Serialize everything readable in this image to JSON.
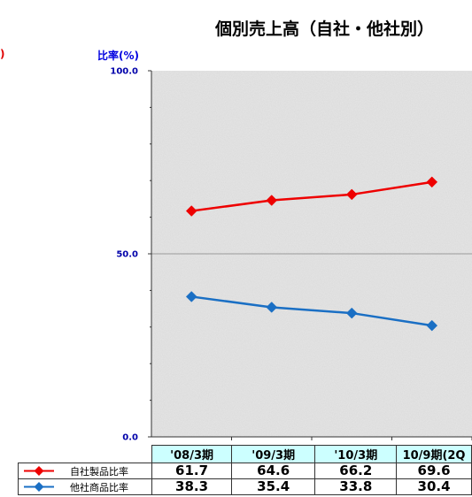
{
  "chart_data": {
    "type": "line",
    "title": "個別売上高（自社・他社別）",
    "ylabel": "比率(%)",
    "ylim": [
      0,
      100
    ],
    "yticks": [
      "0.0",
      "50.0",
      "100.0"
    ],
    "categories": [
      "'08/3期",
      "'09/3期",
      "'10/3期",
      "10/9期(2Q"
    ],
    "series": [
      {
        "name": "自社製品比率",
        "color": "#ee0000",
        "values": [
          61.7,
          64.6,
          66.2,
          69.6
        ],
        "labels": [
          "61.7",
          "64.6",
          "66.2",
          "69.6"
        ]
      },
      {
        "name": "他社商品比率",
        "color": "#1a6fc4",
        "values": [
          38.3,
          35.4,
          33.8,
          30.4
        ],
        "labels": [
          "38.3",
          "35.4",
          "33.8",
          "30.4"
        ]
      }
    ],
    "grid": "horizontal",
    "legend": "data-table-bottom"
  },
  "left_fragment": ")"
}
